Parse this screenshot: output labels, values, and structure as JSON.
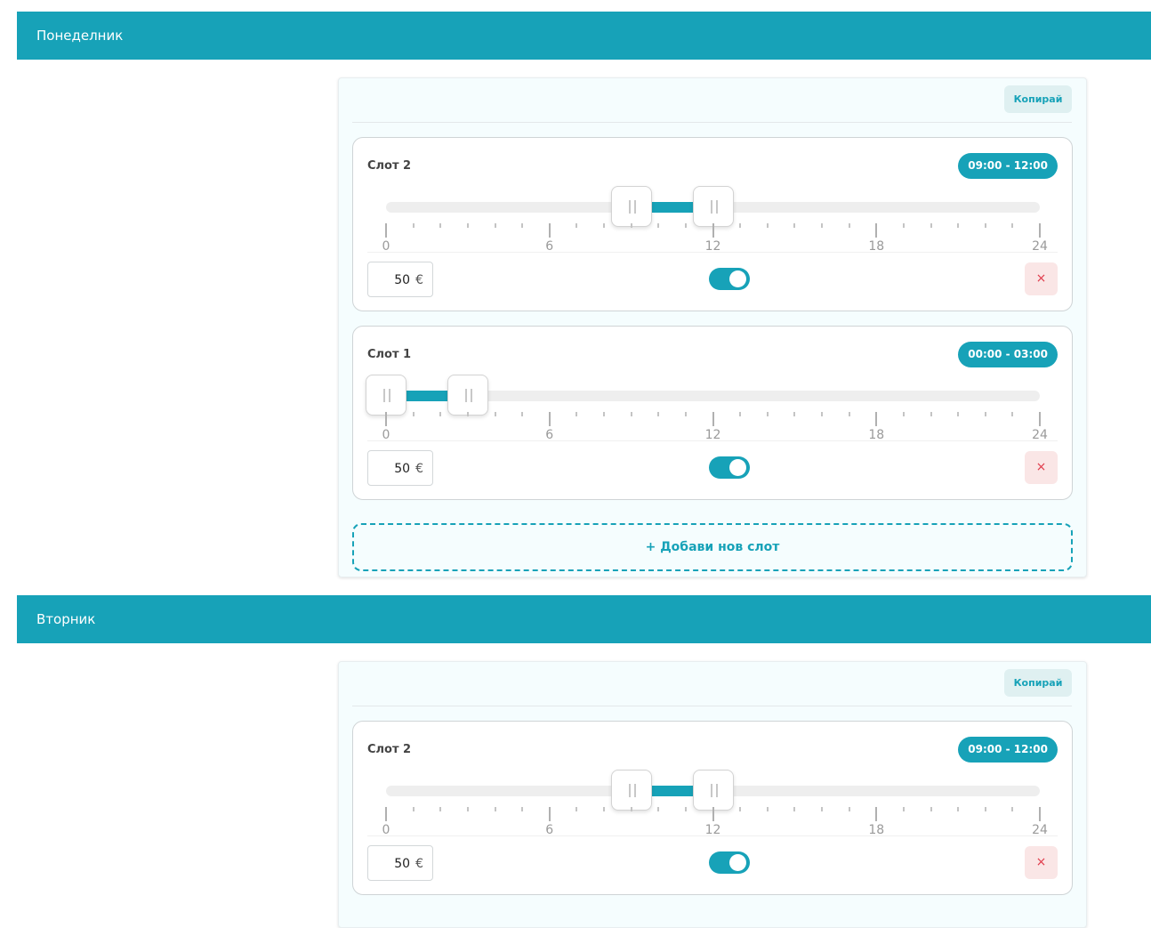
{
  "days": [
    {
      "name": "Понеделник",
      "copy_label": "Копирай",
      "slots": [
        {
          "title": "Слот 2",
          "time_range": "09:00 - 12:00",
          "start_hour": 9,
          "end_hour": 12,
          "price": "50",
          "currency": "€",
          "enabled": true,
          "delete_label": "×"
        },
        {
          "title": "Слот 1",
          "time_range": "00:00 - 03:00",
          "start_hour": 0,
          "end_hour": 3,
          "price": "50",
          "currency": "€",
          "enabled": true,
          "delete_label": "×"
        }
      ],
      "add_slot_label": "+ Добави нов слот"
    },
    {
      "name": "Вторник",
      "copy_label": "Копирай",
      "slots": [
        {
          "title": "Слот 2",
          "time_range": "09:00 - 12:00",
          "start_hour": 9,
          "end_hour": 12,
          "price": "50",
          "currency": "€",
          "enabled": true,
          "delete_label": "×"
        }
      ]
    }
  ],
  "scale": {
    "min": 0,
    "max": 24,
    "labels": [
      "0",
      "6",
      "12",
      "18",
      "24"
    ]
  },
  "colors": {
    "accent": "#17a2b8",
    "delete_bg": "#fae6e6",
    "delete_fg": "#e03a4a"
  }
}
